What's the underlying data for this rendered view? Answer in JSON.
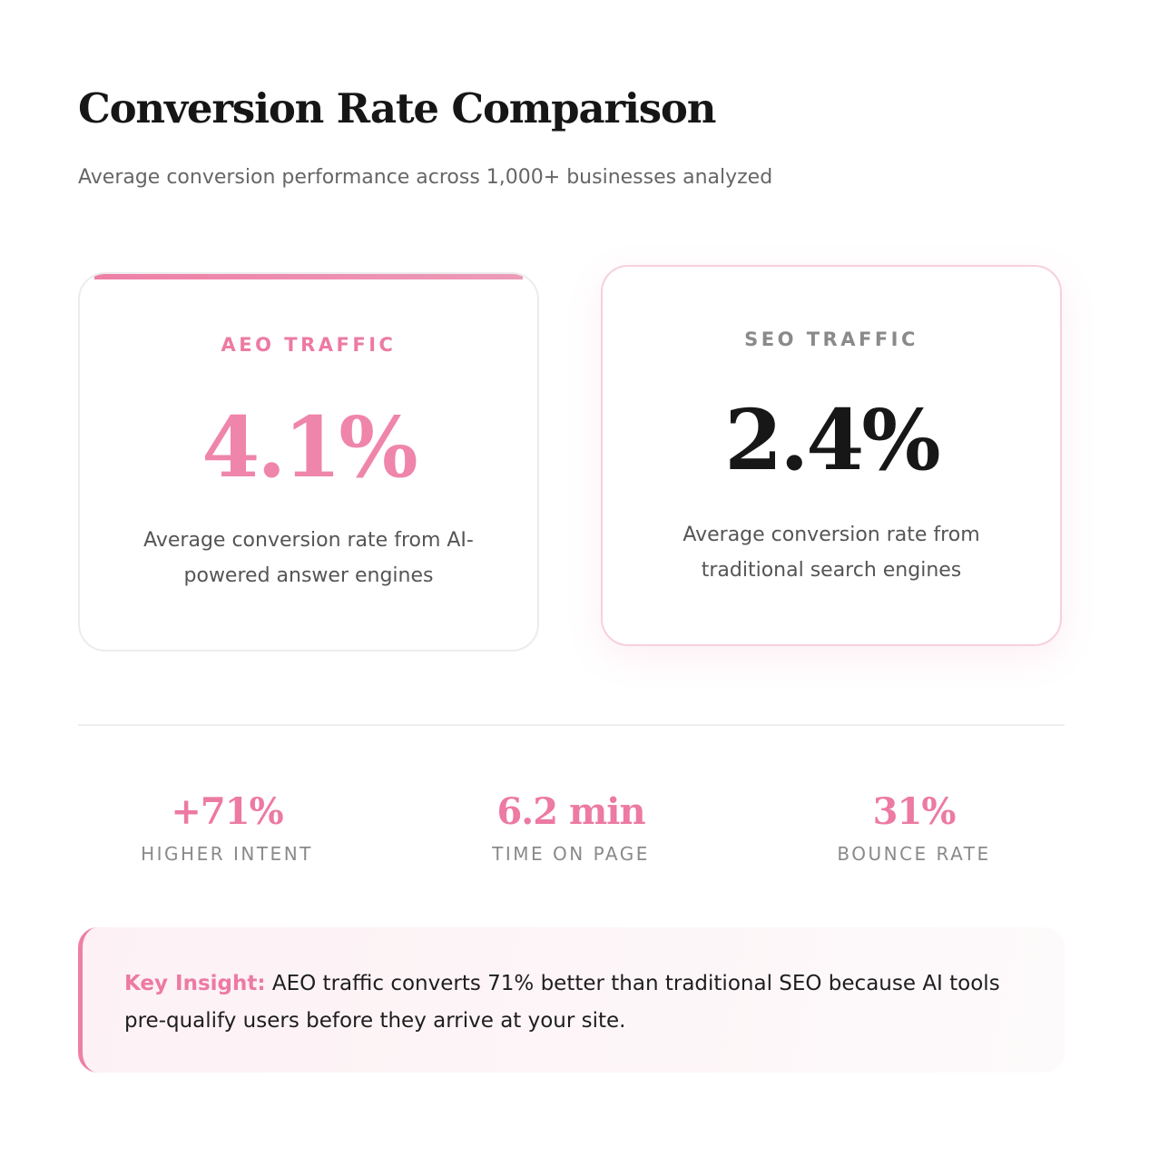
{
  "header": {
    "title": "Conversion Rate Comparison",
    "subtitle": "Average conversion performance across 1,000+ businesses analyzed"
  },
  "cards": [
    {
      "label": "AEO TRAFFIC",
      "value": "4.1%",
      "description": "Average conversion rate from AI-powered answer engines",
      "accent_color": "#ee7fa6"
    },
    {
      "label": "SEO TRAFFIC",
      "value": "2.4%",
      "description": "Average conversion rate from traditional search engines",
      "accent_color": "#171717"
    }
  ],
  "stats": [
    {
      "value": "+71%",
      "label": "HIGHER INTENT"
    },
    {
      "value": "6.2 min",
      "label": "TIME ON PAGE"
    },
    {
      "value": "31%",
      "label": "BOUNCE RATE"
    }
  ],
  "insight": {
    "key": "Key Insight:",
    "text": " AEO traffic converts 71% better than traditional SEO because AI tools pre-qualify users before they arrive at your site."
  },
  "colors": {
    "accent": "#ec7aa3",
    "muted_text": "#8a8a8a"
  }
}
